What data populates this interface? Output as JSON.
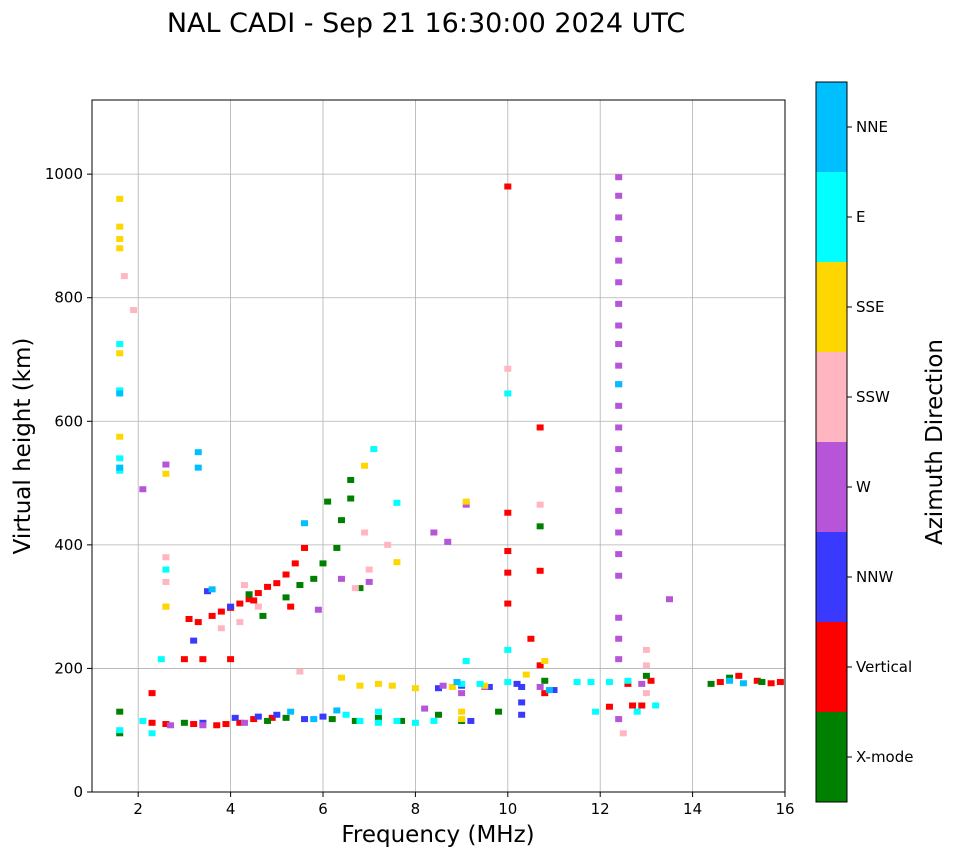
{
  "chart_data": {
    "type": "scatter",
    "title": "NAL CADI - Sep 21 16:30:00 2024 UTC",
    "xlabel": "Frequency (MHz)",
    "ylabel": "Virtual height (km)",
    "xlim": [
      1,
      16
    ],
    "ylim": [
      0,
      1120
    ],
    "xticks": [
      2,
      4,
      6,
      8,
      10,
      12,
      14,
      16
    ],
    "yticks": [
      0,
      200,
      400,
      600,
      800,
      1000
    ],
    "grid": true,
    "colorbar": {
      "label": "Azimuth Direction",
      "categories": [
        {
          "name": "X-mode",
          "color": "#008000"
        },
        {
          "name": "Vertical",
          "color": "#ff0000"
        },
        {
          "name": "NNW",
          "color": "#3a3aff"
        },
        {
          "name": "W",
          "color": "#b655d8"
        },
        {
          "name": "SSW",
          "color": "#ffb6c1"
        },
        {
          "name": "SSE",
          "color": "#ffd700"
        },
        {
          "name": "E",
          "color": "#00ffff"
        },
        {
          "name": "NNE",
          "color": "#00bfff"
        }
      ]
    },
    "series": [
      {
        "name": "Vertical",
        "points": [
          [
            2.3,
            112
          ],
          [
            2.6,
            110
          ],
          [
            3.2,
            110
          ],
          [
            3.7,
            108
          ],
          [
            3.9,
            110
          ],
          [
            4.2,
            112
          ],
          [
            4.5,
            118
          ],
          [
            4.9,
            120
          ],
          [
            3.1,
            280
          ],
          [
            3.3,
            275
          ],
          [
            3.6,
            285
          ],
          [
            3.8,
            292
          ],
          [
            4.0,
            298
          ],
          [
            4.2,
            305
          ],
          [
            4.4,
            312
          ],
          [
            4.6,
            322
          ],
          [
            4.8,
            332
          ],
          [
            5.0,
            338
          ],
          [
            5.2,
            352
          ],
          [
            5.4,
            370
          ],
          [
            5.6,
            395
          ],
          [
            5.3,
            300
          ],
          [
            4.5,
            310
          ],
          [
            10.0,
            980
          ],
          [
            10.0,
            452
          ],
          [
            10.0,
            390
          ],
          [
            10.0,
            355
          ],
          [
            10.0,
            305
          ],
          [
            10.7,
            590
          ],
          [
            10.7,
            358
          ],
          [
            10.5,
            248
          ],
          [
            10.7,
            205
          ],
          [
            10.8,
            160
          ],
          [
            12.2,
            138
          ],
          [
            12.7,
            140
          ],
          [
            12.9,
            140
          ],
          [
            12.6,
            175
          ],
          [
            13.1,
            180
          ],
          [
            14.6,
            178
          ],
          [
            15.0,
            188
          ],
          [
            15.4,
            180
          ],
          [
            15.7,
            176
          ],
          [
            15.9,
            178
          ],
          [
            3.0,
            215
          ],
          [
            3.4,
            215
          ],
          [
            4.0,
            215
          ],
          [
            2.3,
            160
          ]
        ]
      },
      {
        "name": "X-mode",
        "points": [
          [
            1.6,
            95
          ],
          [
            1.6,
            130
          ],
          [
            3.0,
            112
          ],
          [
            4.8,
            115
          ],
          [
            5.2,
            120
          ],
          [
            6.2,
            118
          ],
          [
            6.7,
            115
          ],
          [
            7.2,
            120
          ],
          [
            7.7,
            115
          ],
          [
            5.2,
            315
          ],
          [
            5.5,
            335
          ],
          [
            5.8,
            345
          ],
          [
            6.0,
            370
          ],
          [
            6.3,
            395
          ],
          [
            6.4,
            440
          ],
          [
            6.6,
            475
          ],
          [
            6.6,
            505
          ],
          [
            6.8,
            330
          ],
          [
            4.7,
            285
          ],
          [
            4.4,
            320
          ],
          [
            8.5,
            125
          ],
          [
            9.0,
            115
          ],
          [
            9.8,
            130
          ],
          [
            10.8,
            180
          ],
          [
            14.4,
            175
          ],
          [
            14.8,
            185
          ],
          [
            15.5,
            178
          ],
          [
            13.0,
            188
          ],
          [
            10.7,
            430
          ],
          [
            6.1,
            470
          ]
        ]
      },
      {
        "name": "NNW",
        "points": [
          [
            4.1,
            120
          ],
          [
            4.6,
            122
          ],
          [
            5.0,
            125
          ],
          [
            5.6,
            118
          ],
          [
            6.0,
            122
          ],
          [
            8.5,
            168
          ],
          [
            9.0,
            172
          ],
          [
            9.6,
            170
          ],
          [
            10.2,
            175
          ],
          [
            10.3,
            170
          ],
          [
            11.0,
            165
          ],
          [
            10.3,
            145
          ],
          [
            10.3,
            125
          ],
          [
            3.5,
            325
          ],
          [
            3.2,
            245
          ],
          [
            4.0,
            300
          ],
          [
            3.4,
            112
          ],
          [
            9.2,
            115
          ]
        ]
      },
      {
        "name": "W",
        "points": [
          [
            2.7,
            108
          ],
          [
            3.4,
            108
          ],
          [
            4.3,
            112
          ],
          [
            8.2,
            135
          ],
          [
            8.6,
            172
          ],
          [
            9.0,
            160
          ],
          [
            9.5,
            170
          ],
          [
            10.7,
            170
          ],
          [
            12.4,
            118
          ],
          [
            12.4,
            350
          ],
          [
            12.4,
            385
          ],
          [
            12.4,
            420
          ],
          [
            12.4,
            455
          ],
          [
            12.4,
            490
          ],
          [
            12.4,
            520
          ],
          [
            12.4,
            555
          ],
          [
            12.4,
            590
          ],
          [
            12.4,
            625
          ],
          [
            12.4,
            660
          ],
          [
            12.4,
            690
          ],
          [
            12.4,
            725
          ],
          [
            12.4,
            755
          ],
          [
            12.4,
            790
          ],
          [
            12.4,
            825
          ],
          [
            12.4,
            860
          ],
          [
            12.4,
            895
          ],
          [
            12.4,
            930
          ],
          [
            12.4,
            965
          ],
          [
            12.4,
            995
          ],
          [
            12.4,
            282
          ],
          [
            12.4,
            248
          ],
          [
            12.4,
            215
          ],
          [
            13.5,
            312
          ],
          [
            8.4,
            420
          ],
          [
            8.7,
            405
          ],
          [
            9.1,
            465
          ],
          [
            2.6,
            530
          ],
          [
            2.1,
            490
          ],
          [
            6.4,
            345
          ],
          [
            7.0,
            340
          ],
          [
            5.9,
            295
          ],
          [
            12.9,
            175
          ]
        ]
      },
      {
        "name": "SSW",
        "points": [
          [
            3.8,
            265
          ],
          [
            4.2,
            275
          ],
          [
            4.3,
            335
          ],
          [
            4.6,
            300
          ],
          [
            5.5,
            195
          ],
          [
            6.7,
            330
          ],
          [
            7.0,
            360
          ],
          [
            12.5,
            95
          ],
          [
            13.0,
            230
          ],
          [
            13.0,
            205
          ],
          [
            10.7,
            465
          ],
          [
            10.0,
            685
          ],
          [
            6.9,
            420
          ],
          [
            7.4,
            400
          ],
          [
            2.6,
            300
          ],
          [
            2.6,
            340
          ],
          [
            2.6,
            380
          ],
          [
            1.7,
            835
          ],
          [
            1.9,
            780
          ],
          [
            13.0,
            160
          ]
        ]
      },
      {
        "name": "SSE",
        "points": [
          [
            6.4,
            185
          ],
          [
            6.8,
            172
          ],
          [
            7.2,
            175
          ],
          [
            7.5,
            172
          ],
          [
            8.0,
            168
          ],
          [
            8.8,
            170
          ],
          [
            9.5,
            172
          ],
          [
            10.4,
            190
          ],
          [
            10.8,
            212
          ],
          [
            9.0,
            130
          ],
          [
            9.0,
            118
          ],
          [
            1.6,
            960
          ],
          [
            1.6,
            915
          ],
          [
            1.6,
            895
          ],
          [
            1.6,
            880
          ],
          [
            1.6,
            710
          ],
          [
            1.6,
            575
          ],
          [
            2.6,
            515
          ],
          [
            2.6,
            300
          ],
          [
            9.1,
            470
          ],
          [
            7.6,
            372
          ],
          [
            6.9,
            528
          ]
        ]
      },
      {
        "name": "E",
        "points": [
          [
            1.6,
            100
          ],
          [
            2.1,
            115
          ],
          [
            2.3,
            95
          ],
          [
            6.5,
            125
          ],
          [
            6.8,
            115
          ],
          [
            7.2,
            112
          ],
          [
            7.6,
            115
          ],
          [
            8.0,
            112
          ],
          [
            8.4,
            115
          ],
          [
            9.0,
            175
          ],
          [
            9.4,
            175
          ],
          [
            10.0,
            178
          ],
          [
            10.0,
            230
          ],
          [
            10.0,
            645
          ],
          [
            11.5,
            178
          ],
          [
            11.8,
            178
          ],
          [
            12.2,
            178
          ],
          [
            12.6,
            180
          ],
          [
            12.8,
            130
          ],
          [
            13.2,
            140
          ],
          [
            2.6,
            360
          ],
          [
            2.5,
            215
          ],
          [
            1.6,
            725
          ],
          [
            1.6,
            520
          ],
          [
            1.6,
            540
          ],
          [
            1.6,
            650
          ],
          [
            9.1,
            212
          ],
          [
            7.1,
            555
          ],
          [
            7.6,
            468
          ],
          [
            7.2,
            130
          ],
          [
            11.9,
            130
          ]
        ]
      },
      {
        "name": "NNE",
        "points": [
          [
            1.6,
            645
          ],
          [
            1.6,
            525
          ],
          [
            3.3,
            550
          ],
          [
            3.3,
            525
          ],
          [
            5.6,
            435
          ],
          [
            5.3,
            130
          ],
          [
            5.8,
            118
          ],
          [
            6.3,
            132
          ],
          [
            12.4,
            660
          ],
          [
            14.8,
            180
          ],
          [
            15.1,
            176
          ],
          [
            8.9,
            178
          ],
          [
            10.9,
            165
          ],
          [
            3.6,
            328
          ]
        ]
      }
    ]
  }
}
